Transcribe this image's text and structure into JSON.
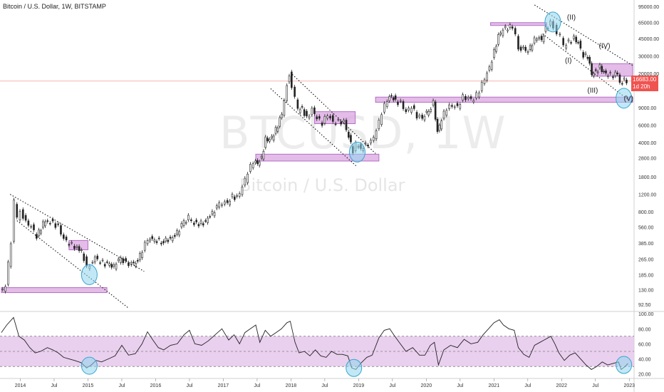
{
  "header": {
    "title": "Bitcoin / U.S. Dollar, 1W, BITSTAMP",
    "watermark_symbol": "BTCUSD, 1W",
    "watermark_name": "Bitcoin / U.S. Dollar"
  },
  "price_tag": {
    "price": "16683.00",
    "countdown": "1d 20h"
  },
  "colors": {
    "up": "#26a69a",
    "down": "#ef5350",
    "zone": "#d9a6e0",
    "zone_border": "#b56fc7",
    "circle_fill": "#8fd6ee",
    "circle_stroke": "#3aa6d0",
    "rsi_band": "#e3c4ea",
    "price_line": "#ef5350",
    "candle": "#222222"
  },
  "chart_data": [
    {
      "type": "candlestick",
      "scale": "log",
      "ylim": [
        80,
        110000
      ],
      "xlim": [
        2013.7,
        2023.05
      ],
      "x_tick_labels": [
        "2014",
        "Jul",
        "2015",
        "Jul",
        "2016",
        "Jul",
        "2017",
        "Jul",
        "2018",
        "Jul",
        "2019",
        "Jul",
        "2020",
        "Jul",
        "2021",
        "Jul",
        "2022",
        "Jul",
        "2023"
      ],
      "x_tick_values": [
        2014,
        2014.5,
        2015,
        2015.5,
        2016,
        2016.5,
        2017,
        2017.5,
        2018,
        2018.5,
        2019,
        2019.5,
        2020,
        2020.5,
        2021,
        2021.5,
        2022,
        2022.5,
        2023
      ],
      "y_tick_labels": [
        "95000.00",
        "65000.00",
        "45000.00",
        "30000.00",
        "20000.00",
        "9000.00",
        "6000.00",
        "4000.00",
        "2800.00",
        "1800.00",
        "1200.00",
        "800.00",
        "560.00",
        "385.00",
        "265.00",
        "185.00",
        "130.00",
        "92.50"
      ],
      "y_tick_values": [
        95000,
        65000,
        45000,
        30000,
        20000,
        9000,
        6000,
        4000,
        2800,
        1800,
        1200,
        800,
        560,
        385,
        265,
        185,
        130,
        92.5
      ],
      "last_price": 16683,
      "price_path": [
        [
          2013.72,
          125
        ],
        [
          2013.8,
          140
        ],
        [
          2013.88,
          400
        ],
        [
          2013.93,
          1000
        ],
        [
          2013.97,
          700
        ],
        [
          2014.02,
          850
        ],
        [
          2014.1,
          620
        ],
        [
          2014.18,
          560
        ],
        [
          2014.26,
          450
        ],
        [
          2014.35,
          600
        ],
        [
          2014.42,
          650
        ],
        [
          2014.5,
          620
        ],
        [
          2014.58,
          560
        ],
        [
          2014.66,
          420
        ],
        [
          2014.74,
          380
        ],
        [
          2014.82,
          360
        ],
        [
          2014.92,
          320
        ],
        [
          2015.0,
          220
        ],
        [
          2015.05,
          240
        ],
        [
          2015.12,
          270
        ],
        [
          2015.2,
          250
        ],
        [
          2015.3,
          235
        ],
        [
          2015.4,
          225
        ],
        [
          2015.5,
          280
        ],
        [
          2015.58,
          240
        ],
        [
          2015.66,
          235
        ],
        [
          2015.75,
          250
        ],
        [
          2015.82,
          330
        ],
        [
          2015.9,
          430
        ],
        [
          2016.0,
          420
        ],
        [
          2016.1,
          400
        ],
        [
          2016.2,
          420
        ],
        [
          2016.3,
          450
        ],
        [
          2016.4,
          580
        ],
        [
          2016.5,
          700
        ],
        [
          2016.55,
          650
        ],
        [
          2016.62,
          600
        ],
        [
          2016.72,
          620
        ],
        [
          2016.82,
          720
        ],
        [
          2016.92,
          880
        ],
        [
          2017.0,
          1000
        ],
        [
          2017.08,
          1000
        ],
        [
          2017.15,
          1150
        ],
        [
          2017.22,
          1100
        ],
        [
          2017.3,
          1400
        ],
        [
          2017.38,
          2000
        ],
        [
          2017.46,
          2600
        ],
        [
          2017.52,
          2500
        ],
        [
          2017.58,
          2800
        ],
        [
          2017.64,
          4300
        ],
        [
          2017.7,
          4200
        ],
        [
          2017.76,
          4800
        ],
        [
          2017.82,
          6000
        ],
        [
          2017.88,
          8000
        ],
        [
          2017.92,
          11000
        ],
        [
          2017.96,
          16000
        ],
        [
          2017.99,
          19500
        ],
        [
          2018.03,
          14000
        ],
        [
          2018.08,
          11000
        ],
        [
          2018.12,
          8500
        ],
        [
          2018.18,
          9000
        ],
        [
          2018.25,
          7000
        ],
        [
          2018.33,
          8500
        ],
        [
          2018.4,
          7000
        ],
        [
          2018.48,
          6300
        ],
        [
          2018.56,
          7800
        ],
        [
          2018.64,
          6500
        ],
        [
          2018.72,
          6500
        ],
        [
          2018.8,
          6400
        ],
        [
          2018.87,
          4500
        ],
        [
          2018.93,
          3300
        ],
        [
          2018.98,
          3800
        ],
        [
          2019.05,
          3500
        ],
        [
          2019.12,
          3800
        ],
        [
          2019.2,
          4000
        ],
        [
          2019.28,
          5200
        ],
        [
          2019.36,
          8000
        ],
        [
          2019.44,
          11000
        ],
        [
          2019.5,
          12000
        ],
        [
          2019.56,
          10500
        ],
        [
          2019.64,
          10000
        ],
        [
          2019.72,
          8000
        ],
        [
          2019.8,
          9200
        ],
        [
          2019.88,
          7500
        ],
        [
          2019.96,
          7200
        ],
        [
          2020.05,
          8500
        ],
        [
          2020.12,
          10000
        ],
        [
          2020.18,
          5000
        ],
        [
          2020.24,
          6800
        ],
        [
          2020.32,
          9000
        ],
        [
          2020.4,
          9600
        ],
        [
          2020.48,
          9200
        ],
        [
          2020.56,
          11500
        ],
        [
          2020.64,
          11000
        ],
        [
          2020.72,
          10800
        ],
        [
          2020.8,
          13500
        ],
        [
          2020.88,
          18000
        ],
        [
          2020.95,
          23000
        ],
        [
          2021.02,
          33000
        ],
        [
          2021.08,
          47000
        ],
        [
          2021.15,
          55000
        ],
        [
          2021.22,
          58000
        ],
        [
          2021.29,
          60000
        ],
        [
          2021.34,
          50000
        ],
        [
          2021.38,
          37000
        ],
        [
          2021.45,
          35000
        ],
        [
          2021.52,
          33000
        ],
        [
          2021.58,
          40000
        ],
        [
          2021.65,
          47000
        ],
        [
          2021.72,
          44000
        ],
        [
          2021.78,
          57000
        ],
        [
          2021.85,
          64000
        ],
        [
          2021.9,
          58000
        ],
        [
          2021.95,
          48000
        ],
        [
          2022.0,
          47000
        ],
        [
          2022.05,
          38000
        ],
        [
          2022.12,
          42000
        ],
        [
          2022.2,
          45000
        ],
        [
          2022.26,
          40000
        ],
        [
          2022.34,
          30000
        ],
        [
          2022.4,
          30000
        ],
        [
          2022.46,
          20000
        ],
        [
          2022.52,
          21000
        ],
        [
          2022.58,
          23000
        ],
        [
          2022.64,
          20000
        ],
        [
          2022.7,
          19300
        ],
        [
          2022.78,
          19200
        ],
        [
          2022.84,
          20500
        ],
        [
          2022.88,
          16500
        ],
        [
          2022.94,
          16900
        ],
        [
          2022.98,
          16683
        ]
      ],
      "zones": [
        {
          "x0": 2013.72,
          "x1": 2015.28,
          "y0": 122,
          "y1": 137
        },
        {
          "x0": 2014.72,
          "x1": 2015.0,
          "y0": 330,
          "y1": 410
        },
        {
          "x0": 2017.48,
          "x1": 2019.3,
          "y0": 2600,
          "y1": 3050
        },
        {
          "x0": 2018.35,
          "x1": 2018.95,
          "y0": 6200,
          "y1": 8200
        },
        {
          "x0": 2019.25,
          "x1": 2023.05,
          "y0": 10200,
          "y1": 11500
        },
        {
          "x0": 2020.95,
          "x1": 2021.78,
          "y0": 61500,
          "y1": 65000
        },
        {
          "x0": 2022.45,
          "x1": 2023.05,
          "y0": 18700,
          "y1": 25000
        }
      ],
      "trendlines": [
        {
          "x0": 2013.85,
          "y0": 1200,
          "x1": 2015.83,
          "y1": 200
        },
        {
          "x0": 2013.95,
          "y0": 650,
          "x1": 2015.6,
          "y1": 85
        },
        {
          "x0": 2018.02,
          "y0": 19500,
          "x1": 2019.25,
          "y1": 3100
        },
        {
          "x0": 2017.7,
          "y0": 14000,
          "x1": 2018.97,
          "y1": 2300
        },
        {
          "x0": 2021.6,
          "y0": 98000,
          "x1": 2023.05,
          "y1": 24000
        },
        {
          "x0": 2021.72,
          "y0": 50000,
          "x1": 2023.05,
          "y1": 10000
        }
      ],
      "horizontal_lines": [
        {
          "y": 16683
        }
      ],
      "circles": [
        {
          "x": 2015.02,
          "y": 185
        },
        {
          "x": 2018.98,
          "y": 3200
        },
        {
          "x": 2021.87,
          "y": 66000
        },
        {
          "x": 2022.92,
          "y": 11200
        }
      ],
      "annotations": [
        {
          "text": "(I)",
          "x": 2022.05,
          "y": 25500
        },
        {
          "text": "(II)",
          "x": 2022.08,
          "y": 70000
        },
        {
          "text": "(III)",
          "x": 2022.38,
          "y": 12800
        },
        {
          "text": "(IV)",
          "x": 2022.55,
          "y": 36000
        },
        {
          "text": "(V)",
          "x": 2022.92,
          "y": 10500
        }
      ]
    },
    {
      "type": "line",
      "name": "RSI",
      "ylim": [
        15,
        102
      ],
      "y_tick_labels": [
        "100.00",
        "80.00",
        "60.00",
        "40.00",
        "20.00"
      ],
      "y_tick_values": [
        100,
        80,
        60,
        40,
        20
      ],
      "band": [
        30,
        70
      ],
      "mid": 50,
      "values": [
        [
          2013.72,
          75
        ],
        [
          2013.8,
          85
        ],
        [
          2013.9,
          95
        ],
        [
          2013.98,
          70
        ],
        [
          2014.06,
          65
        ],
        [
          2014.14,
          55
        ],
        [
          2014.22,
          48
        ],
        [
          2014.3,
          50
        ],
        [
          2014.4,
          55
        ],
        [
          2014.48,
          52
        ],
        [
          2014.56,
          48
        ],
        [
          2014.64,
          42
        ],
        [
          2014.72,
          40
        ],
        [
          2014.8,
          38
        ],
        [
          2014.9,
          35
        ],
        [
          2014.98,
          28
        ],
        [
          2015.05,
          32
        ],
        [
          2015.12,
          38
        ],
        [
          2015.2,
          36
        ],
        [
          2015.3,
          40
        ],
        [
          2015.4,
          44
        ],
        [
          2015.5,
          58
        ],
        [
          2015.6,
          45
        ],
        [
          2015.7,
          47
        ],
        [
          2015.8,
          60
        ],
        [
          2015.88,
          76
        ],
        [
          2015.96,
          65
        ],
        [
          2016.04,
          55
        ],
        [
          2016.12,
          52
        ],
        [
          2016.22,
          58
        ],
        [
          2016.32,
          60
        ],
        [
          2016.42,
          72
        ],
        [
          2016.5,
          78
        ],
        [
          2016.58,
          60
        ],
        [
          2016.68,
          58
        ],
        [
          2016.78,
          64
        ],
        [
          2016.88,
          72
        ],
        [
          2016.98,
          80
        ],
        [
          2017.08,
          65
        ],
        [
          2017.16,
          72
        ],
        [
          2017.24,
          60
        ],
        [
          2017.32,
          75
        ],
        [
          2017.4,
          80
        ],
        [
          2017.48,
          85
        ],
        [
          2017.54,
          62
        ],
        [
          2017.62,
          78
        ],
        [
          2017.7,
          70
        ],
        [
          2017.78,
          75
        ],
        [
          2017.86,
          80
        ],
        [
          2017.94,
          88
        ],
        [
          2017.99,
          90
        ],
        [
          2018.06,
          62
        ],
        [
          2018.12,
          48
        ],
        [
          2018.2,
          50
        ],
        [
          2018.28,
          44
        ],
        [
          2018.36,
          52
        ],
        [
          2018.44,
          44
        ],
        [
          2018.52,
          42
        ],
        [
          2018.6,
          50
        ],
        [
          2018.68,
          46
        ],
        [
          2018.76,
          46
        ],
        [
          2018.84,
          44
        ],
        [
          2018.9,
          28
        ],
        [
          2018.96,
          26
        ],
        [
          2019.04,
          35
        ],
        [
          2019.12,
          42
        ],
        [
          2019.2,
          45
        ],
        [
          2019.3,
          68
        ],
        [
          2019.38,
          78
        ],
        [
          2019.46,
          80
        ],
        [
          2019.52,
          72
        ],
        [
          2019.6,
          62
        ],
        [
          2019.7,
          50
        ],
        [
          2019.8,
          55
        ],
        [
          2019.9,
          45
        ],
        [
          2019.98,
          45
        ],
        [
          2020.06,
          58
        ],
        [
          2020.12,
          62
        ],
        [
          2020.18,
          32
        ],
        [
          2020.26,
          52
        ],
        [
          2020.36,
          58
        ],
        [
          2020.46,
          55
        ],
        [
          2020.56,
          66
        ],
        [
          2020.66,
          60
        ],
        [
          2020.76,
          62
        ],
        [
          2020.84,
          72
        ],
        [
          2020.92,
          80
        ],
        [
          2021.0,
          88
        ],
        [
          2021.08,
          92
        ],
        [
          2021.14,
          85
        ],
        [
          2021.22,
          80
        ],
        [
          2021.3,
          78
        ],
        [
          2021.36,
          55
        ],
        [
          2021.44,
          46
        ],
        [
          2021.52,
          42
        ],
        [
          2021.6,
          58
        ],
        [
          2021.68,
          62
        ],
        [
          2021.76,
          66
        ],
        [
          2021.84,
          70
        ],
        [
          2021.9,
          60
        ],
        [
          2021.96,
          48
        ],
        [
          2022.04,
          38
        ],
        [
          2022.12,
          45
        ],
        [
          2022.2,
          48
        ],
        [
          2022.28,
          40
        ],
        [
          2022.36,
          32
        ],
        [
          2022.44,
          26
        ],
        [
          2022.52,
          30
        ],
        [
          2022.6,
          36
        ],
        [
          2022.68,
          32
        ],
        [
          2022.76,
          34
        ],
        [
          2022.84,
          36
        ],
        [
          2022.88,
          26
        ],
        [
          2022.94,
          30
        ],
        [
          2022.98,
          34
        ]
      ],
      "circles": [
        {
          "x": 2015.02,
          "y": 31
        },
        {
          "x": 2018.93,
          "y": 28
        },
        {
          "x": 2022.92,
          "y": 32
        }
      ]
    }
  ]
}
